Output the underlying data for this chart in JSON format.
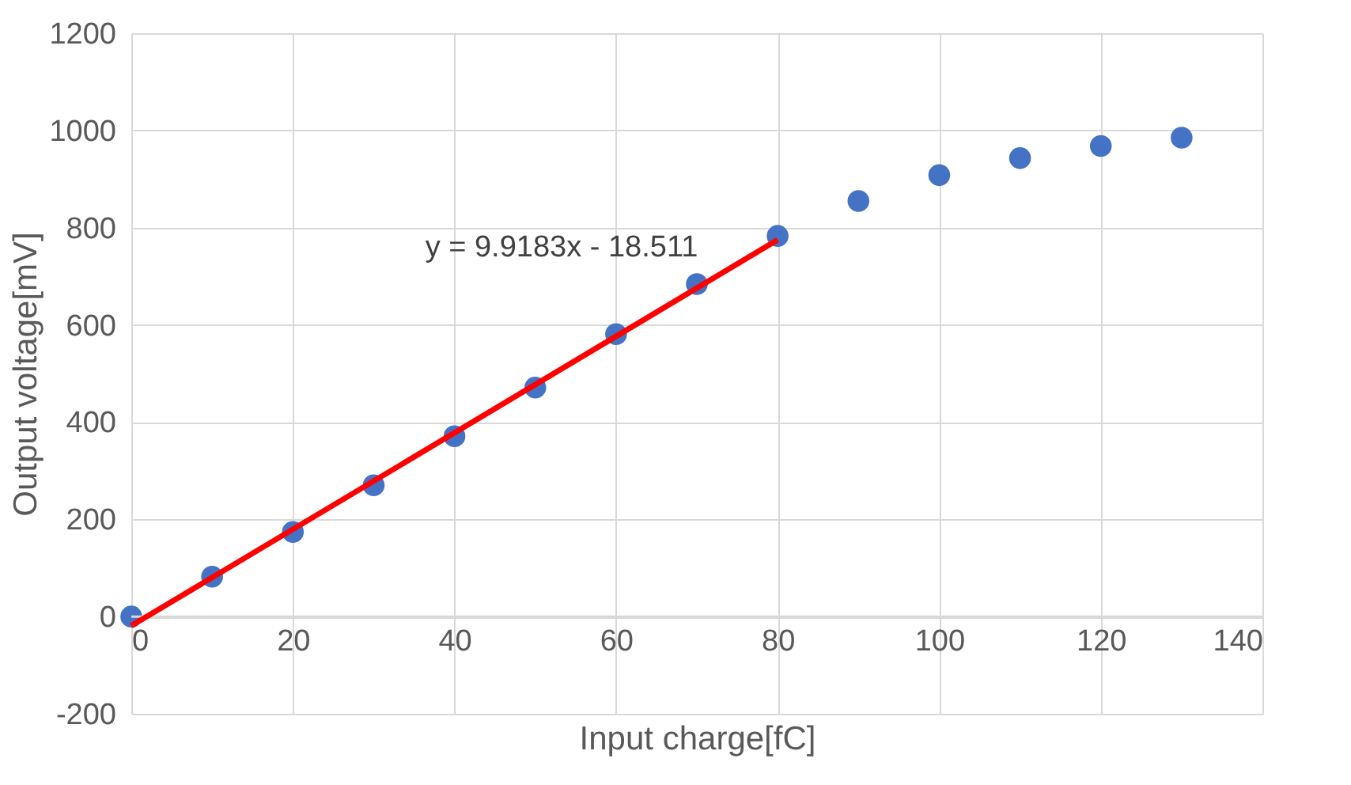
{
  "chart_data": {
    "type": "scatter",
    "xlabel": "Input charge[fC]",
    "ylabel": "Output voltage[mV]",
    "xlim": [
      0,
      140
    ],
    "xticks": [
      0,
      20,
      40,
      60,
      80,
      100,
      120,
      140
    ],
    "ylim": [
      -200,
      1200
    ],
    "yticks": [
      -200,
      0,
      200,
      400,
      600,
      800,
      {
        "value": 1000,
        "label": "1000"
      },
      {
        "value": 1200,
        "label": "1200"
      }
    ],
    "grid": true,
    "series": [
      {
        "type": "scatter",
        "color": "#4472c4",
        "marker": "circle",
        "x": [
          0,
          10,
          20,
          30,
          40,
          50,
          60,
          70,
          80,
          90,
          100,
          110,
          120,
          130
        ],
        "values": [
          0,
          82,
          174,
          270,
          371,
          471,
          581,
          684,
          783,
          855,
          908,
          943,
          968,
          985
        ]
      },
      {
        "type": "line",
        "color": "#ff0000",
        "x": [
          0,
          80
        ],
        "values": [
          -19,
          775
        ]
      }
    ],
    "annotations": [
      "y = 9.9183x - 18.511"
    ]
  }
}
